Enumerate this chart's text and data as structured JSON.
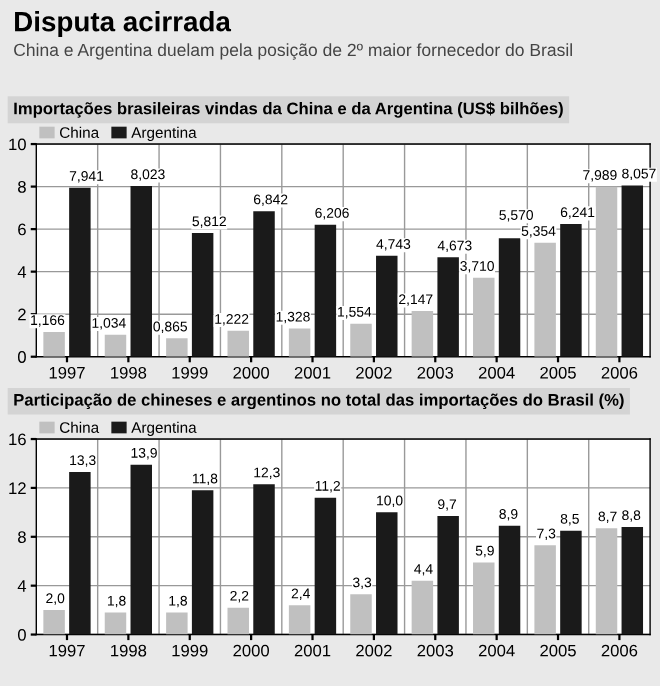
{
  "chart_data": [
    {
      "type": "bar",
      "title": "Disputa acirrada",
      "subtitle": "China e Argentina duelam pela posição de 2º maior fornecedor do Brasil",
      "ylabel": "Importações brasileiras vindas da China e da Argentina (US$ bilhões)",
      "categories": [
        "1997",
        "1998",
        "1999",
        "2000",
        "2001",
        "2002",
        "2003",
        "2004",
        "2005",
        "2006"
      ],
      "series": [
        {
          "name": "China",
          "color": "#c0c0c0",
          "values": [
            1.166,
            1.034,
            0.865,
            1.222,
            1.328,
            1.554,
            2.147,
            3.71,
            5.354,
            7.989
          ],
          "value_labels": [
            "1,166",
            "1,034",
            "0,865",
            "1,222",
            "1,328",
            "1,554",
            "2,147",
            "3,710",
            "5,354",
            "7,989"
          ]
        },
        {
          "name": "Argentina",
          "color": "#1a1a1a",
          "values": [
            7.941,
            8.023,
            5.812,
            6.842,
            6.206,
            4.743,
            4.673,
            5.57,
            6.241,
            8.057
          ],
          "value_labels": [
            "7,941",
            "8,023",
            "5,812",
            "6,842",
            "6,206",
            "4,743",
            "4,673",
            "5,570",
            "6,241",
            "8,057"
          ]
        }
      ],
      "ylim": [
        0,
        10
      ],
      "yticks": [
        0,
        2,
        4,
        6,
        8,
        10
      ],
      "grid": true,
      "legend": "top left"
    },
    {
      "type": "bar",
      "ylabel": "Participação de chineses e argentinos no total das importações do Brasil (%)",
      "categories": [
        "1997",
        "1998",
        "1999",
        "2000",
        "2001",
        "2002",
        "2003",
        "2004",
        "2005",
        "2006"
      ],
      "series": [
        {
          "name": "China",
          "color": "#c0c0c0",
          "values": [
            2.0,
            1.8,
            1.8,
            2.2,
            2.4,
            3.3,
            4.4,
            5.9,
            7.3,
            8.7
          ],
          "value_labels": [
            "2,0",
            "1,8",
            "1,8",
            "2,2",
            "2,4",
            "3,3",
            "4,4",
            "5,9",
            "7,3",
            "8,7"
          ]
        },
        {
          "name": "Argentina",
          "color": "#1a1a1a",
          "values": [
            13.3,
            13.9,
            11.8,
            12.3,
            11.2,
            10.0,
            9.7,
            8.9,
            8.5,
            8.8
          ],
          "value_labels": [
            "13,3",
            "13,9",
            "11,8",
            "12,3",
            "11,2",
            "10,0",
            "9,7",
            "8,9",
            "8,5",
            "8,8"
          ]
        }
      ],
      "ylim": [
        0,
        16
      ],
      "yticks": [
        0,
        4,
        8,
        12,
        16
      ],
      "grid": true,
      "legend": "top left"
    }
  ]
}
